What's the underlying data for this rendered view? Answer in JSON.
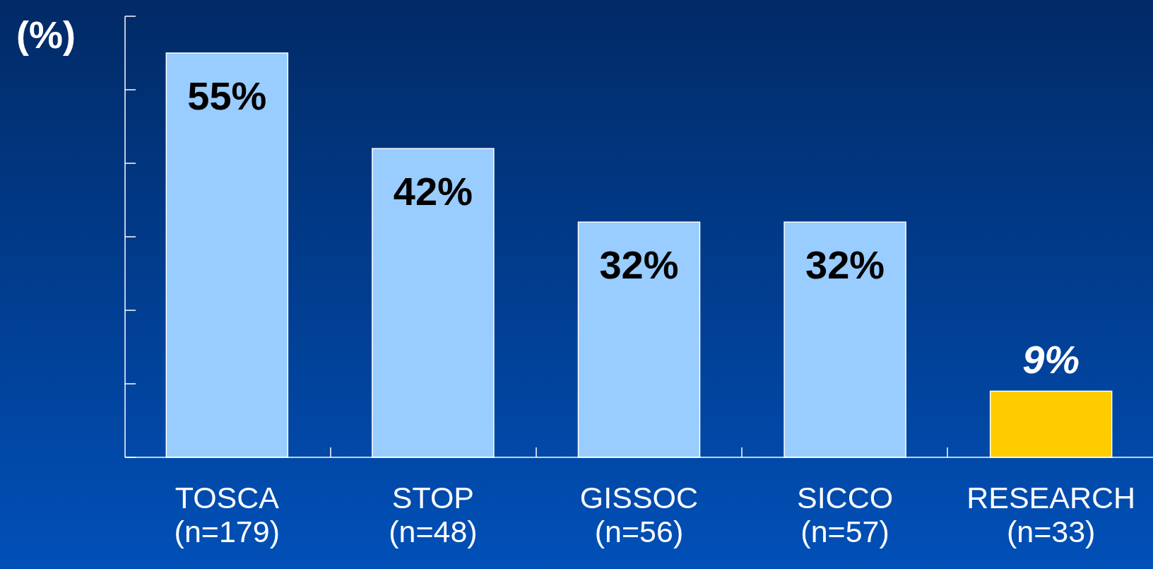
{
  "chart_data": {
    "type": "bar",
    "ylabel": "(%)",
    "categories": [
      "TOSCA\n(n=179)",
      "STOP\n(n=48)",
      "GISSOC\n(n=56)",
      "SICCO\n(n=57)",
      "RESEARCH\n(n=33)"
    ],
    "values": [
      55,
      42,
      32,
      32,
      9
    ],
    "value_labels": [
      "55%",
      "42%",
      "32%",
      "32%",
      "9%"
    ],
    "colors": [
      "#99ccff",
      "#99ccff",
      "#99ccff",
      "#99ccff",
      "#ffcc00"
    ],
    "tick_labels": "x"
  }
}
